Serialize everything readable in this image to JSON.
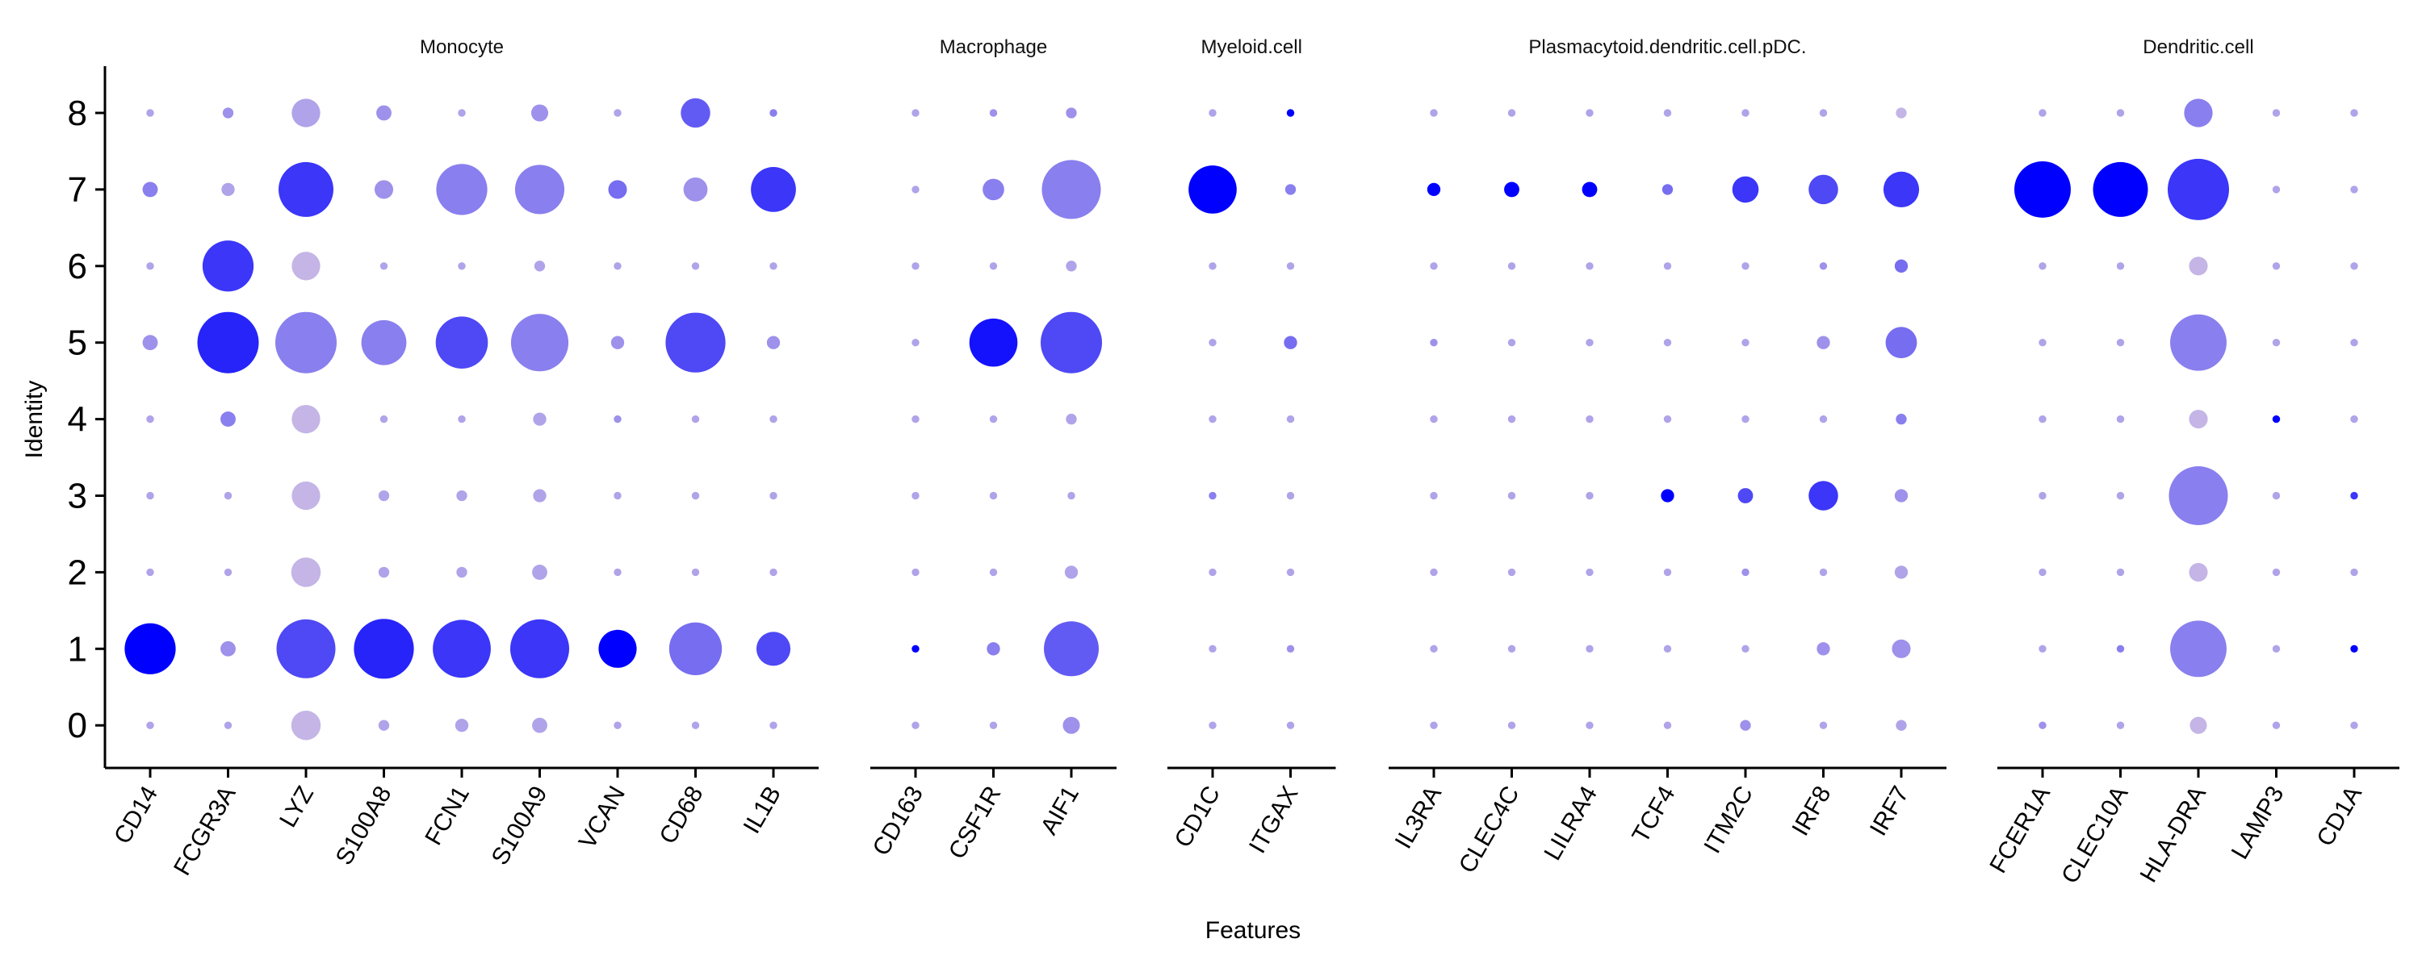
{
  "chart_data": {
    "type": "dotplot",
    "xlabel": "Features",
    "ylabel": "Identity",
    "identities": [
      "0",
      "1",
      "2",
      "3",
      "4",
      "5",
      "6",
      "7",
      "8"
    ],
    "color_low": "#c4b5e6",
    "color_high": "#0000ff",
    "groups": [
      {
        "name": "Monocyte",
        "features": [
          "CD14",
          "FCGR3A",
          "LYZ",
          "S100A8",
          "FCN1",
          "S100A9",
          "VCAN",
          "CD68",
          "IL1B"
        ],
        "size": [
          [
            1,
            1,
            15,
            2,
            3,
            4,
            1,
            1,
            1
          ],
          [
            45,
            4,
            60,
            62,
            58,
            60,
            25,
            48,
            20
          ],
          [
            1,
            1,
            15,
            2,
            2,
            4,
            1,
            1,
            1
          ],
          [
            1,
            1,
            14,
            2,
            2,
            3,
            1,
            1,
            1
          ],
          [
            1,
            4,
            14,
            1,
            1,
            3,
            1,
            1,
            1
          ],
          [
            4,
            65,
            65,
            35,
            47,
            57,
            3,
            62,
            3
          ],
          [
            1,
            45,
            14,
            1,
            1,
            2,
            1,
            1,
            1
          ],
          [
            4,
            3,
            52,
            6,
            45,
            42,
            6,
            10,
            35
          ],
          [
            1,
            2,
            14,
            4,
            1,
            5,
            1,
            15,
            1
          ]
        ],
        "expr": [
          [
            0.1,
            0.1,
            0.0,
            0.1,
            0.1,
            0.1,
            0.1,
            0.1,
            0.1
          ],
          [
            1.0,
            0.2,
            0.6,
            0.8,
            0.7,
            0.7,
            1.0,
            0.4,
            0.6
          ],
          [
            0.1,
            0.1,
            0.0,
            0.1,
            0.1,
            0.1,
            0.1,
            0.1,
            0.1
          ],
          [
            0.1,
            0.1,
            0.0,
            0.1,
            0.1,
            0.1,
            0.1,
            0.1,
            0.1
          ],
          [
            0.1,
            0.3,
            0.0,
            0.1,
            0.1,
            0.1,
            0.2,
            0.1,
            0.1
          ],
          [
            0.2,
            0.8,
            0.3,
            0.3,
            0.6,
            0.3,
            0.2,
            0.6,
            0.2
          ],
          [
            0.1,
            0.7,
            0.0,
            0.1,
            0.1,
            0.1,
            0.1,
            0.1,
            0.1
          ],
          [
            0.3,
            0.1,
            0.7,
            0.2,
            0.3,
            0.3,
            0.4,
            0.2,
            0.7
          ],
          [
            0.1,
            0.2,
            0.1,
            0.2,
            0.1,
            0.2,
            0.1,
            0.5,
            0.3
          ]
        ]
      },
      {
        "name": "Macrophage",
        "features": [
          "CD163",
          "CSF1R",
          "AIF1"
        ],
        "size": [
          [
            1,
            1,
            5
          ],
          [
            1,
            3,
            52
          ],
          [
            1,
            1,
            3
          ],
          [
            1,
            1,
            1
          ],
          [
            1,
            1,
            2
          ],
          [
            1,
            40,
            65
          ],
          [
            1,
            1,
            2
          ],
          [
            1,
            8,
            60
          ],
          [
            1,
            1,
            2
          ]
        ],
        "expr": [
          [
            0.1,
            0.1,
            0.2
          ],
          [
            1.0,
            0.3,
            0.5
          ],
          [
            0.1,
            0.1,
            0.1
          ],
          [
            0.1,
            0.1,
            0.1
          ],
          [
            0.1,
            0.1,
            0.1
          ],
          [
            0.1,
            0.9,
            0.6
          ],
          [
            0.1,
            0.1,
            0.1
          ],
          [
            0.1,
            0.3,
            0.3
          ],
          [
            0.1,
            0.2,
            0.2
          ]
        ]
      },
      {
        "name": "Myeloid.cell",
        "features": [
          "CD1C",
          "ITGAX"
        ],
        "size": [
          [
            1,
            1
          ],
          [
            1,
            1
          ],
          [
            1,
            1
          ],
          [
            1,
            1
          ],
          [
            1,
            1
          ],
          [
            1,
            3
          ],
          [
            1,
            1
          ],
          [
            40,
            2
          ],
          [
            1,
            1
          ]
        ],
        "expr": [
          [
            0.1,
            0.1
          ],
          [
            0.1,
            0.2
          ],
          [
            0.1,
            0.1
          ],
          [
            0.3,
            0.1
          ],
          [
            0.1,
            0.1
          ],
          [
            0.1,
            0.4
          ],
          [
            0.1,
            0.1
          ],
          [
            1.0,
            0.3
          ],
          [
            0.1,
            1.0
          ]
        ]
      },
      {
        "name": "Plasmacytoid.dendritic.cell.pDC.",
        "features": [
          "IL3RA",
          "CLEC4C",
          "LILRA4",
          "TCF4",
          "ITM2C",
          "IRF8",
          "IRF7"
        ],
        "size": [
          [
            1,
            1,
            1,
            1,
            2,
            1,
            2
          ],
          [
            1,
            1,
            1,
            1,
            1,
            3,
            6
          ],
          [
            1,
            1,
            1,
            1,
            1,
            1,
            3
          ],
          [
            1,
            1,
            1,
            3,
            4,
            15,
            3
          ],
          [
            1,
            1,
            1,
            1,
            1,
            1,
            2
          ],
          [
            1,
            1,
            1,
            1,
            1,
            3,
            17
          ],
          [
            1,
            1,
            1,
            1,
            1,
            1,
            3
          ],
          [
            3,
            4,
            4,
            2,
            12,
            15,
            22
          ],
          [
            1,
            1,
            1,
            1,
            1,
            1,
            2
          ]
        ],
        "expr": [
          [
            0.1,
            0.1,
            0.1,
            0.1,
            0.2,
            0.1,
            0.1
          ],
          [
            0.1,
            0.1,
            0.1,
            0.1,
            0.1,
            0.2,
            0.2
          ],
          [
            0.1,
            0.1,
            0.1,
            0.1,
            0.2,
            0.1,
            0.1
          ],
          [
            0.1,
            0.1,
            0.1,
            1.0,
            0.6,
            0.7,
            0.2
          ],
          [
            0.1,
            0.1,
            0.1,
            0.1,
            0.1,
            0.1,
            0.3
          ],
          [
            0.2,
            0.1,
            0.1,
            0.1,
            0.1,
            0.2,
            0.4
          ],
          [
            0.1,
            0.1,
            0.1,
            0.1,
            0.1,
            0.2,
            0.4
          ],
          [
            1.0,
            1.0,
            1.0,
            0.4,
            0.7,
            0.6,
            0.7
          ],
          [
            0.1,
            0.1,
            0.1,
            0.1,
            0.1,
            0.1,
            0.0
          ]
        ]
      },
      {
        "name": "Dendritic.cell",
        "features": [
          "FCER1A",
          "CLEC10A",
          "HLA-DRA",
          "LAMP3",
          "CD1A"
        ],
        "size": [
          [
            1,
            1,
            5,
            1,
            1
          ],
          [
            1,
            1,
            55,
            1,
            1
          ],
          [
            1,
            1,
            6,
            1,
            1
          ],
          [
            1,
            1,
            60,
            1,
            1
          ],
          [
            1,
            1,
            6,
            1,
            1
          ],
          [
            1,
            1,
            55,
            1,
            1
          ],
          [
            1,
            1,
            6,
            1,
            1
          ],
          [
            55,
            52,
            65,
            1,
            1
          ],
          [
            1,
            1,
            14,
            1,
            1
          ]
        ],
        "expr": [
          [
            0.2,
            0.1,
            0.0,
            0.1,
            0.1
          ],
          [
            0.1,
            0.3,
            0.3,
            0.1,
            1.0
          ],
          [
            0.1,
            0.1,
            0.0,
            0.1,
            0.1
          ],
          [
            0.1,
            0.1,
            0.3,
            0.1,
            0.7
          ],
          [
            0.1,
            0.1,
            0.0,
            1.0,
            0.1
          ],
          [
            0.1,
            0.1,
            0.3,
            0.1,
            0.1
          ],
          [
            0.1,
            0.1,
            0.0,
            0.1,
            0.1
          ],
          [
            1.0,
            1.0,
            0.7,
            0.1,
            0.1
          ],
          [
            0.1,
            0.1,
            0.3,
            0.1,
            0.1
          ]
        ]
      }
    ]
  }
}
